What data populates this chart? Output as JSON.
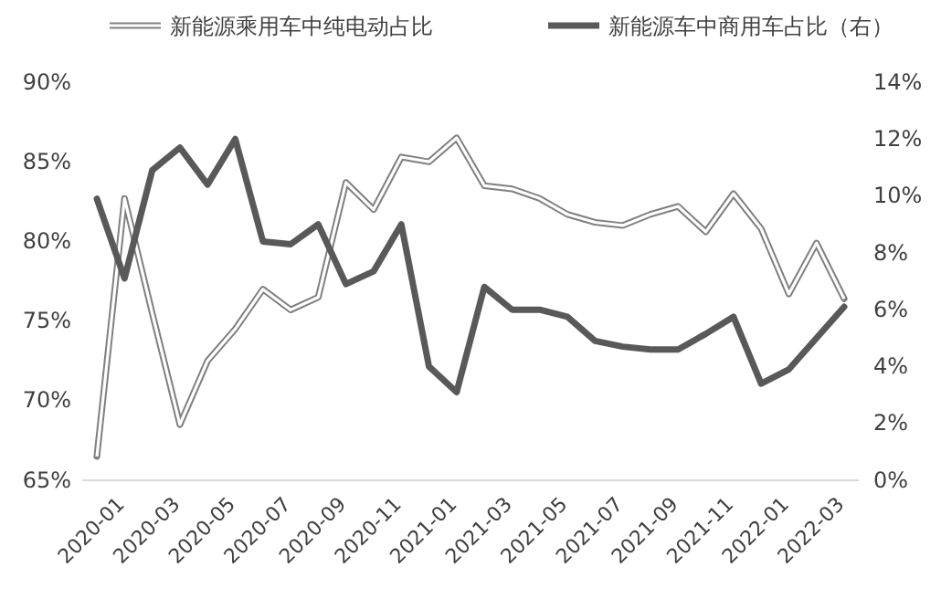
{
  "chart_data": {
    "type": "line",
    "categories": [
      "2020-01",
      null,
      "2020-03",
      null,
      "2020-05",
      null,
      "2020-07",
      null,
      "2020-09",
      null,
      "2020-11",
      null,
      "2021-01",
      null,
      "2021-03",
      null,
      "2021-05",
      null,
      "2021-07",
      null,
      "2021-09",
      null,
      "2021-11",
      null,
      "2022-01",
      null,
      "2022-03",
      null
    ],
    "ylim": [
      65,
      90
    ],
    "yticks": [
      {
        "value": 65,
        "label": "65%"
      },
      {
        "value": 70,
        "label": "70%"
      },
      {
        "value": 75,
        "label": "75%"
      },
      {
        "value": 80,
        "label": "80%"
      },
      {
        "value": 85,
        "label": "85%"
      },
      {
        "value": 90,
        "label": "90%"
      }
    ],
    "y2lim": [
      0,
      14
    ],
    "y2ticks": [
      {
        "value": 0,
        "label": "0%"
      },
      {
        "value": 2,
        "label": "2%"
      },
      {
        "value": 4,
        "label": "4%"
      },
      {
        "value": 6,
        "label": "6%"
      },
      {
        "value": 8,
        "label": "8%"
      },
      {
        "value": 10,
        "label": "10%"
      },
      {
        "value": 12,
        "label": "12%"
      },
      {
        "value": 14,
        "label": "14%"
      }
    ],
    "grid": false,
    "legend": "top",
    "line_style": "solid",
    "series": [
      {
        "name": "新能源乘用车中纯电动占比",
        "color": "#808080",
        "values": [
          66.5,
          82.7,
          75.5,
          68.5,
          72.5,
          74.5,
          77,
          75.7,
          76.5,
          83.7,
          82,
          85.3,
          85,
          86.5,
          83.5,
          83.3,
          82.7,
          81.7,
          81.2,
          81,
          81.7,
          82.2,
          80.6,
          83,
          80.8,
          76.7,
          79.9,
          76.4
        ]
      },
      {
        "name": "新能源车中商用车占比（右）",
        "color": "#595959",
        "axis": "y2",
        "values": [
          9.9,
          7.1,
          10.9,
          11.7,
          10.4,
          12,
          8.4,
          8.3,
          9,
          6.9,
          7.35,
          9,
          4,
          3.1,
          6.8,
          6,
          6,
          5.75,
          4.9,
          4.7,
          4.6,
          4.6,
          5.15,
          5.75,
          3.4,
          3.9,
          5,
          6.1
        ]
      }
    ]
  }
}
